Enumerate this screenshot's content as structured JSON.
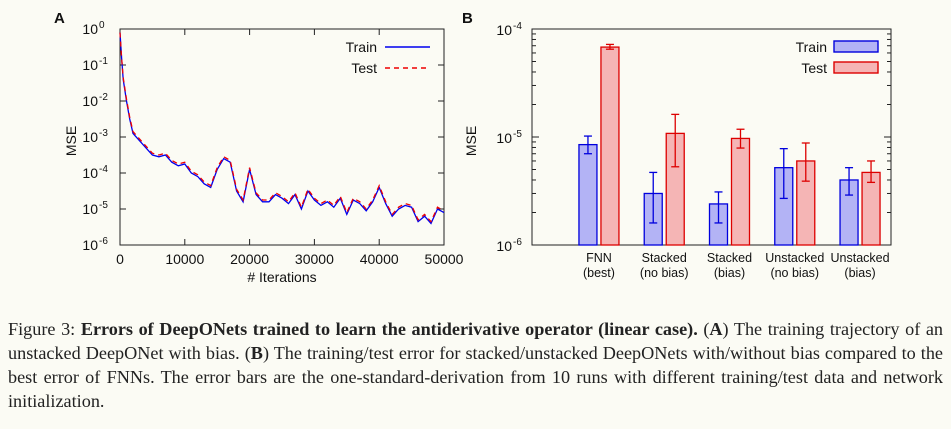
{
  "chart_data": [
    {
      "panel_label": "A",
      "type": "line",
      "xlabel": "# Iterations",
      "ylabel": "MSE",
      "y_scale": "log",
      "xlim": [
        0,
        50000
      ],
      "ylim_exponent": [
        -6,
        0
      ],
      "x_ticks": [
        "0",
        "10000",
        "20000",
        "30000",
        "40000",
        "50000"
      ],
      "y_ticks": [
        "0",
        "-1",
        "-2",
        "-3",
        "-4",
        "-5",
        "-6"
      ],
      "legend_position": "top-right",
      "series": [
        {
          "name": "Train",
          "style": "solid",
          "color": "#0000ee",
          "x": [
            0,
            250,
            500,
            1000,
            1500,
            2000,
            3000,
            4000,
            5000,
            6000,
            7000,
            8000,
            9000,
            10000,
            11000,
            12000,
            13000,
            14000,
            15000,
            16000,
            17000,
            18000,
            19000,
            20000,
            21000,
            22000,
            23000,
            24000,
            25000,
            26000,
            27000,
            28000,
            29000,
            30000,
            31000,
            32000,
            33000,
            34000,
            35000,
            36000,
            37000,
            38000,
            39000,
            40000,
            41000,
            42000,
            43000,
            44000,
            45000,
            46000,
            47000,
            48000,
            49000,
            50000
          ],
          "y_log10": [
            -0.1,
            -0.8,
            -1.4,
            -2.0,
            -2.5,
            -2.9,
            -3.1,
            -3.3,
            -3.5,
            -3.55,
            -3.5,
            -3.7,
            -3.8,
            -3.75,
            -4.0,
            -4.1,
            -4.3,
            -4.4,
            -3.9,
            -3.6,
            -3.7,
            -4.5,
            -4.8,
            -3.9,
            -4.6,
            -4.8,
            -4.8,
            -4.6,
            -4.7,
            -4.85,
            -4.6,
            -5.0,
            -4.5,
            -4.75,
            -4.9,
            -4.8,
            -4.95,
            -4.7,
            -5.15,
            -4.75,
            -4.85,
            -5.05,
            -4.8,
            -4.4,
            -4.85,
            -5.2,
            -5.0,
            -4.9,
            -4.95,
            -5.35,
            -5.2,
            -5.4,
            -5.0,
            -5.1
          ]
        },
        {
          "name": "Test",
          "style": "dashed",
          "color": "#ee0000",
          "x": [
            0,
            250,
            500,
            1000,
            1500,
            2000,
            3000,
            4000,
            5000,
            6000,
            7000,
            8000,
            9000,
            10000,
            11000,
            12000,
            13000,
            14000,
            15000,
            16000,
            17000,
            18000,
            19000,
            20000,
            21000,
            22000,
            23000,
            24000,
            25000,
            26000,
            27000,
            28000,
            29000,
            30000,
            31000,
            32000,
            33000,
            34000,
            35000,
            36000,
            37000,
            38000,
            39000,
            40000,
            41000,
            42000,
            43000,
            44000,
            45000,
            46000,
            47000,
            48000,
            49000,
            50000
          ],
          "y_log10": [
            -0.1,
            -0.8,
            -1.35,
            -1.95,
            -2.45,
            -2.85,
            -3.05,
            -3.25,
            -3.45,
            -3.5,
            -3.45,
            -3.65,
            -3.75,
            -3.7,
            -3.95,
            -4.05,
            -4.25,
            -4.35,
            -3.85,
            -3.55,
            -3.65,
            -4.45,
            -4.75,
            -3.85,
            -4.55,
            -4.75,
            -4.75,
            -4.55,
            -4.65,
            -4.8,
            -4.55,
            -4.95,
            -4.45,
            -4.7,
            -4.85,
            -4.75,
            -4.9,
            -4.65,
            -5.1,
            -4.7,
            -4.8,
            -5.0,
            -4.75,
            -4.35,
            -4.8,
            -5.15,
            -4.95,
            -4.85,
            -4.9,
            -5.3,
            -5.15,
            -5.35,
            -4.95,
            -5.05
          ]
        }
      ]
    },
    {
      "panel_label": "B",
      "type": "bar",
      "ylabel": "MSE",
      "y_scale": "log",
      "ylim_exponent": [
        -6,
        -4
      ],
      "y_ticks": [
        "-6",
        "-5",
        "-4"
      ],
      "legend_position": "top-right",
      "categories": [
        {
          "line1": "FNN",
          "line2": "(best)"
        },
        {
          "line1": "Stacked",
          "line2": "(no bias)"
        },
        {
          "line1": "Stacked",
          "line2": "(bias)"
        },
        {
          "line1": "Unstacked",
          "line2": "(no bias)"
        },
        {
          "line1": "Unstacked",
          "line2": "(bias)"
        }
      ],
      "series": [
        {
          "name": "Train",
          "color": "#0000dd",
          "fill": "#b3b3f5",
          "values": [
            8.5e-06,
            3e-06,
            2.4e-06,
            5.2e-06,
            4e-06
          ],
          "err_low": [
            7e-06,
            1.6e-06,
            1.6e-06,
            2.7e-06,
            2.9e-06
          ],
          "err_high": [
            1.02e-05,
            4.7e-06,
            3.1e-06,
            7.8e-06,
            5.2e-06
          ]
        },
        {
          "name": "Test",
          "color": "#dd0000",
          "fill": "#f5b5b5",
          "values": [
            6.8e-05,
            1.08e-05,
            9.7e-06,
            6e-06,
            4.7e-06
          ],
          "err_low": [
            6.5e-05,
            5.3e-06,
            7.9e-06,
            3.9e-06,
            3.8e-06
          ],
          "err_high": [
            7.2e-05,
            1.62e-05,
            1.18e-05,
            8.8e-06,
            6e-06
          ]
        }
      ]
    }
  ],
  "caption": {
    "label": "Figure 3:",
    "title": "Errors of DeepONets trained to learn the antiderivative operator (linear case).",
    "part_a_label": "A",
    "part_a_text": "The training trajectory of an unstacked DeepONet with bias.",
    "part_b_label": "B",
    "part_b_text": "The training/test error for stacked/unstacked DeepONets with/without bias compared to the best error of FNNs. The error bars are the one-standard-derivation from 10 runs with different training/test data and network initialization."
  }
}
